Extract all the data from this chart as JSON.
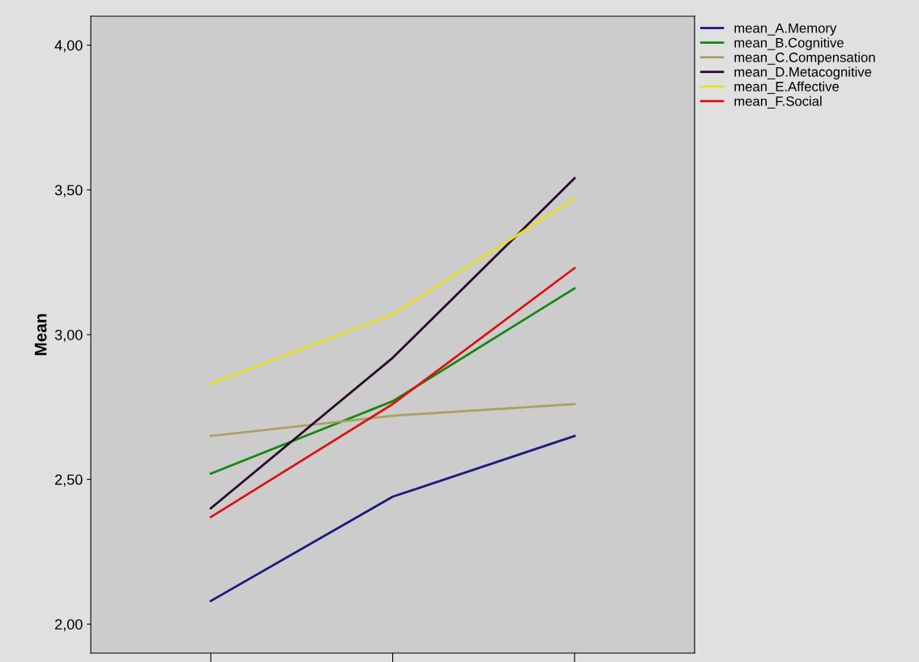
{
  "chart_data": {
    "type": "line",
    "ylabel": "Mean",
    "categories": [
      null,
      null,
      null
    ],
    "series": [
      {
        "name": "mean_A.Memory",
        "color": "#1a1a80",
        "values": [
          2.08,
          2.44,
          2.65
        ]
      },
      {
        "name": "mean_B.Cognitive",
        "color": "#118811",
        "values": [
          2.52,
          2.77,
          3.16
        ]
      },
      {
        "name": "mean_C.Compensation",
        "color": "#aaa060",
        "values": [
          2.65,
          2.72,
          2.76
        ]
      },
      {
        "name": "mean_D.Metacognitive",
        "color": "#2a0a2a",
        "values": [
          2.4,
          2.92,
          3.54
        ]
      },
      {
        "name": "mean_E.Affective",
        "color": "#e8e020",
        "values": [
          2.83,
          3.07,
          3.47
        ]
      },
      {
        "name": "mean_F.Social",
        "color": "#dd1111",
        "values": [
          2.37,
          2.76,
          3.23
        ]
      }
    ],
    "ylim": [
      1.9,
      4.1
    ],
    "yticks": [
      {
        "value": 2.0,
        "label": "2,00"
      },
      {
        "value": 2.5,
        "label": "2,50"
      },
      {
        "value": 3.0,
        "label": "3,00"
      },
      {
        "value": 3.5,
        "label": "3,50"
      },
      {
        "value": 4.0,
        "label": "4,00"
      }
    ],
    "legend": "top right",
    "grid": false,
    "marker": "none",
    "line_style": "solid"
  }
}
